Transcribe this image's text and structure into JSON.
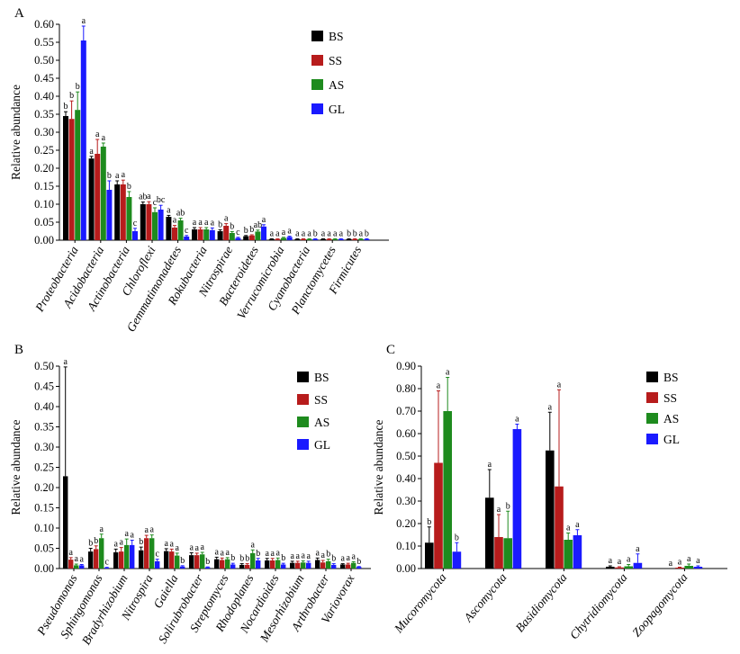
{
  "colors": {
    "BS": "#000000",
    "SS": "#b71c1c",
    "AS": "#1e8b1e",
    "GL": "#1a1aff"
  },
  "chart_data": [
    {
      "panel": "A",
      "type": "bar",
      "ylabel": "Relative abundance",
      "ylim": [
        0,
        0.6
      ],
      "yticks": [
        "0.00",
        "0.05",
        "0.10",
        "0.15",
        "0.20",
        "0.25",
        "0.30",
        "0.35",
        "0.40",
        "0.45",
        "0.50",
        "0.55",
        "0.60"
      ],
      "categories": [
        "Proteobacteria",
        "Acidobacteria",
        "Actinobacteria",
        "Chloroflexi",
        "Gemmatimonadetes",
        "Rokubacteria",
        "Nitrospirae",
        "Bacteroidetes",
        "Verrucomicrobia",
        "Cyanobacteria",
        "Planctomycetes",
        "Firmicutes"
      ],
      "series": [
        {
          "name": "BS",
          "values": [
            0.345,
            0.227,
            0.155,
            0.1,
            0.065,
            0.03,
            0.025,
            0.011,
            0.003,
            0.003,
            0.003,
            0.003
          ],
          "errors": [
            0.012,
            0.006,
            0.01,
            0.006,
            0.004,
            0.005,
            0.004,
            0.002,
            0.001,
            0.001,
            0.001,
            0.001
          ],
          "sig": [
            "b",
            "a",
            "a",
            "ab",
            "a",
            "a",
            "b",
            "b",
            "a",
            "a",
            "a",
            "b"
          ]
        },
        {
          "name": "SS",
          "values": [
            0.337,
            0.24,
            0.155,
            0.1,
            0.035,
            0.03,
            0.04,
            0.013,
            0.003,
            0.003,
            0.003,
            0.003
          ],
          "errors": [
            0.05,
            0.04,
            0.012,
            0.007,
            0.006,
            0.005,
            0.006,
            0.002,
            0.001,
            0.001,
            0.001,
            0.001
          ],
          "sig": [
            "b",
            "a",
            "a",
            "a",
            "a",
            "a",
            "a",
            "b",
            "a",
            "a",
            "a",
            "b"
          ]
        },
        {
          "name": "AS",
          "values": [
            0.362,
            0.26,
            0.12,
            0.078,
            0.055,
            0.03,
            0.02,
            0.024,
            0.006,
            0.003,
            0.003,
            0.003
          ],
          "errors": [
            0.05,
            0.01,
            0.015,
            0.012,
            0.006,
            0.005,
            0.004,
            0.004,
            0.002,
            0.001,
            0.001,
            0.001
          ],
          "sig": [
            "b",
            "a",
            "b",
            "c",
            "ab",
            "a",
            "b",
            "ab",
            "a",
            "a",
            "a",
            "a"
          ]
        },
        {
          "name": "GL",
          "values": [
            0.555,
            0.14,
            0.025,
            0.085,
            0.01,
            0.028,
            0.006,
            0.038,
            0.009,
            0.003,
            0.003,
            0.003
          ],
          "errors": [
            0.04,
            0.025,
            0.008,
            0.012,
            0.003,
            0.006,
            0.002,
            0.005,
            0.002,
            0.001,
            0.001,
            0.001
          ],
          "sig": [
            "a",
            "b",
            "c",
            "bc",
            "c",
            "a",
            "c",
            "a",
            "a",
            "b",
            "a",
            "b"
          ]
        }
      ]
    },
    {
      "panel": "B",
      "type": "bar",
      "ylabel": "Relative abundance",
      "ylim": [
        0,
        0.5
      ],
      "yticks": [
        "0.00",
        "0.05",
        "0.10",
        "0.15",
        "0.20",
        "0.25",
        "0.30",
        "0.35",
        "0.40",
        "0.45",
        "0.50"
      ],
      "categories": [
        "Pseudomonas",
        "Sphingomonas",
        "Bradyrhizobium",
        "Nitrospira",
        "Gaiella",
        "Solirubrobacter",
        "Streptomyces",
        "Rhodoplanes",
        "Nocardioides",
        "Mesorhizobium",
        "Arthrobacter",
        "Variovorax"
      ],
      "series": [
        {
          "name": "BS",
          "values": [
            0.228,
            0.042,
            0.04,
            0.045,
            0.043,
            0.033,
            0.023,
            0.009,
            0.02,
            0.014,
            0.021,
            0.01
          ],
          "errors": [
            0.27,
            0.008,
            0.008,
            0.008,
            0.006,
            0.006,
            0.005,
            0.003,
            0.005,
            0.004,
            0.005,
            0.002
          ],
          "sig": [
            "a",
            "b",
            "a",
            "b",
            "a",
            "a",
            "a",
            "b",
            "a",
            "a",
            "a",
            "a"
          ]
        },
        {
          "name": "SS",
          "values": [
            0.022,
            0.048,
            0.042,
            0.075,
            0.042,
            0.033,
            0.021,
            0.009,
            0.02,
            0.014,
            0.015,
            0.01
          ],
          "errors": [
            0.005,
            0.008,
            0.01,
            0.007,
            0.006,
            0.005,
            0.005,
            0.003,
            0.005,
            0.004,
            0.005,
            0.003
          ],
          "sig": [
            "a",
            "b",
            "a",
            "a",
            "a",
            "a",
            "a",
            "b",
            "a",
            "a",
            "a",
            "a"
          ]
        },
        {
          "name": "AS",
          "values": [
            0.008,
            0.075,
            0.058,
            0.075,
            0.032,
            0.035,
            0.023,
            0.038,
            0.021,
            0.015,
            0.018,
            0.014
          ],
          "errors": [
            0.003,
            0.01,
            0.015,
            0.008,
            0.006,
            0.005,
            0.004,
            0.008,
            0.005,
            0.004,
            0.005,
            0.003
          ],
          "sig": [
            "a",
            "a",
            "a",
            "a",
            "a",
            "a",
            "a",
            "a",
            "a",
            "a",
            "b",
            "a"
          ]
        },
        {
          "name": "GL",
          "values": [
            0.008,
            0.002,
            0.058,
            0.018,
            0.005,
            0.003,
            0.01,
            0.02,
            0.01,
            0.014,
            0.009,
            0.004
          ],
          "errors": [
            0.002,
            0.001,
            0.012,
            0.005,
            0.002,
            0.001,
            0.003,
            0.005,
            0.003,
            0.004,
            0.003,
            0.001
          ],
          "sig": [
            "a",
            "c",
            "a",
            "c",
            "b",
            "b",
            "b",
            "b",
            "b",
            "a",
            "b",
            "b"
          ]
        }
      ]
    },
    {
      "panel": "C",
      "type": "bar",
      "ylabel": "Relative abundance",
      "ylim": [
        0,
        0.9
      ],
      "yticks": [
        "0.00",
        "0.10",
        "0.20",
        "0.30",
        "0.40",
        "0.50",
        "0.60",
        "0.70",
        "0.80",
        "0.90"
      ],
      "categories": [
        "Mucoromycota",
        "Ascomycota",
        "Basidiomycota",
        "Chytridiomycota",
        "Zoopagomycota"
      ],
      "series": [
        {
          "name": "BS",
          "values": [
            0.115,
            0.315,
            0.525,
            0.008,
            0.0
          ],
          "errors": [
            0.07,
            0.125,
            0.17,
            0.004,
            0.0
          ],
          "sig": [
            "b",
            "a",
            "a",
            "a",
            "a"
          ]
        },
        {
          "name": "SS",
          "values": [
            0.47,
            0.14,
            0.365,
            0.005,
            0.004
          ],
          "errors": [
            0.32,
            0.1,
            0.43,
            0.003,
            0.002
          ],
          "sig": [
            "a",
            "a",
            "a",
            "a",
            "a"
          ]
        },
        {
          "name": "AS",
          "values": [
            0.7,
            0.135,
            0.128,
            0.01,
            0.012
          ],
          "errors": [
            0.15,
            0.12,
            0.03,
            0.008,
            0.008
          ],
          "sig": [
            "a",
            "b",
            "a",
            "a",
            "a"
          ]
        },
        {
          "name": "GL",
          "values": [
            0.075,
            0.62,
            0.148,
            0.025,
            0.008
          ],
          "errors": [
            0.04,
            0.022,
            0.025,
            0.04,
            0.004
          ],
          "sig": [
            "b",
            "a",
            "a",
            "a",
            "a"
          ]
        }
      ]
    }
  ],
  "legend": [
    "BS",
    "SS",
    "AS",
    "GL"
  ]
}
